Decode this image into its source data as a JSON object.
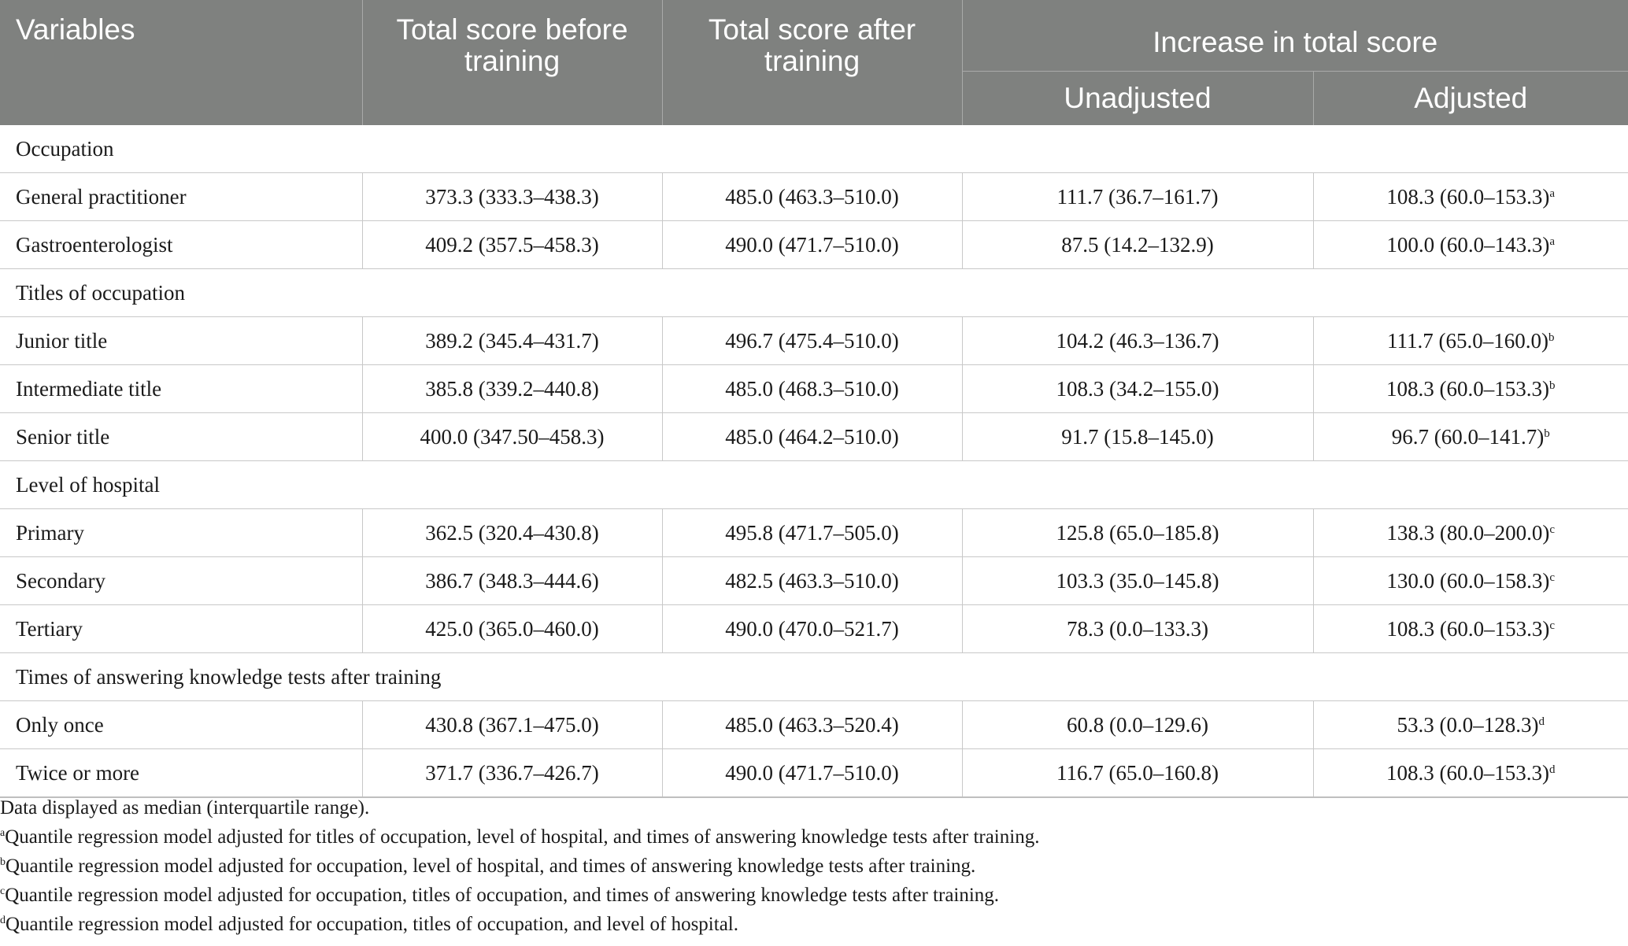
{
  "table": {
    "headers": {
      "variables": "Variables",
      "before": "Total score before training",
      "after": "Total score after training",
      "increase": "Increase in total score",
      "unadjusted": "Unadjusted",
      "adjusted": "Adjusted"
    },
    "sections": [
      {
        "title": "Occupation",
        "rows": [
          {
            "label": "General practitioner",
            "before": "373.3 (333.3–438.3)",
            "after": "485.0 (463.3–510.0)",
            "unadjusted": "111.7 (36.7–161.7)",
            "adjusted": "108.3 (60.0–153.3)",
            "note": "a"
          },
          {
            "label": "Gastroenterologist",
            "before": "409.2 (357.5–458.3)",
            "after": "490.0 (471.7–510.0)",
            "unadjusted": "87.5 (14.2–132.9)",
            "adjusted": "100.0 (60.0–143.3)",
            "note": "a"
          }
        ]
      },
      {
        "title": "Titles of occupation",
        "rows": [
          {
            "label": "Junior title",
            "before": "389.2 (345.4–431.7)",
            "after": "496.7 (475.4–510.0)",
            "unadjusted": "104.2 (46.3–136.7)",
            "adjusted": "111.7 (65.0–160.0)",
            "note": "b"
          },
          {
            "label": "Intermediate title",
            "before": "385.8 (339.2–440.8)",
            "after": "485.0 (468.3–510.0)",
            "unadjusted": "108.3 (34.2–155.0)",
            "adjusted": "108.3 (60.0–153.3)",
            "note": "b"
          },
          {
            "label": "Senior title",
            "before": "400.0 (347.50–458.3)",
            "after": "485.0 (464.2–510.0)",
            "unadjusted": "91.7 (15.8–145.0)",
            "adjusted": "96.7 (60.0–141.7)",
            "note": "b"
          }
        ]
      },
      {
        "title": "Level of hospital",
        "rows": [
          {
            "label": "Primary",
            "before": "362.5 (320.4–430.8)",
            "after": "495.8 (471.7–505.0)",
            "unadjusted": "125.8 (65.0–185.8)",
            "adjusted": "138.3 (80.0–200.0)",
            "note": "c"
          },
          {
            "label": "Secondary",
            "before": "386.7 (348.3–444.6)",
            "after": "482.5 (463.3–510.0)",
            "unadjusted": "103.3 (35.0–145.8)",
            "adjusted": "130.0 (60.0–158.3)",
            "note": "c"
          },
          {
            "label": "Tertiary",
            "before": "425.0 (365.0–460.0)",
            "after": "490.0 (470.0–521.7)",
            "unadjusted": "78.3 (0.0–133.3)",
            "adjusted": "108.3 (60.0–153.3)",
            "note": "c"
          }
        ]
      },
      {
        "title": "Times of answering knowledge tests after training",
        "rows": [
          {
            "label": "Only once",
            "before": "430.8 (367.1–475.0)",
            "after": "485.0 (463.3–520.4)",
            "unadjusted": "60.8 (0.0–129.6)",
            "adjusted": "53.3 (0.0–128.3)",
            "note": "d"
          },
          {
            "label": "Twice or more",
            "before": "371.7 (336.7–426.7)",
            "after": "490.0 (471.7–510.0)",
            "unadjusted": "116.7 (65.0–160.8)",
            "adjusted": "108.3 (60.0–153.3)",
            "note": "d"
          }
        ]
      }
    ]
  },
  "footnotes": [
    {
      "mark": "",
      "text": "Data displayed as median (interquartile range)."
    },
    {
      "mark": "a",
      "text": "Quantile regression model adjusted for titles of occupation, level of hospital, and times of answering knowledge tests after training."
    },
    {
      "mark": "b",
      "text": "Quantile regression model adjusted for occupation, level of hospital, and times of answering knowledge tests after training."
    },
    {
      "mark": "c",
      "text": "Quantile regression model adjusted for occupation, titles of occupation, and times of answering knowledge tests after training."
    },
    {
      "mark": "d",
      "text": "Quantile regression model adjusted for occupation, titles of occupation, and level of hospital."
    }
  ]
}
